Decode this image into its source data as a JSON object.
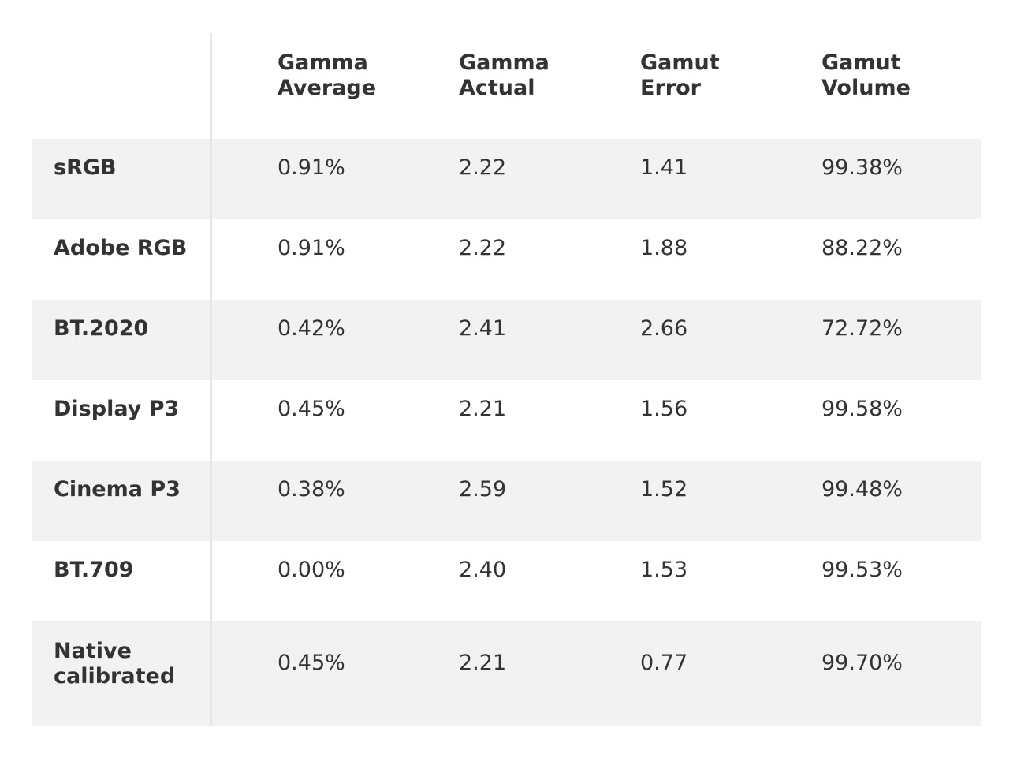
{
  "table": {
    "header": [
      "Gamma Average",
      "Gamma Actual",
      "Gamut Error",
      "Gamut Volume"
    ],
    "rows": [
      [
        "sRGB",
        "0.91%",
        "2.22",
        "1.41",
        "99.38%"
      ],
      [
        "Adobe RGB",
        "0.91%",
        "2.22",
        "1.88",
        "88.22%"
      ],
      [
        "BT.2020",
        "0.42%",
        "2.41",
        "2.66",
        "72.72%"
      ],
      [
        "Display P3",
        "0.45%",
        "2.21",
        "1.56",
        "99.58%"
      ],
      [
        "Cinema P3",
        "0.38%",
        "2.59",
        "1.52",
        "99.48%"
      ],
      [
        "BT.709",
        "0.00%",
        "2.40",
        "1.53",
        "99.53%"
      ],
      [
        "Native calibrated",
        "0.45%",
        "2.21",
        "0.77",
        "99.70%"
      ]
    ]
  }
}
